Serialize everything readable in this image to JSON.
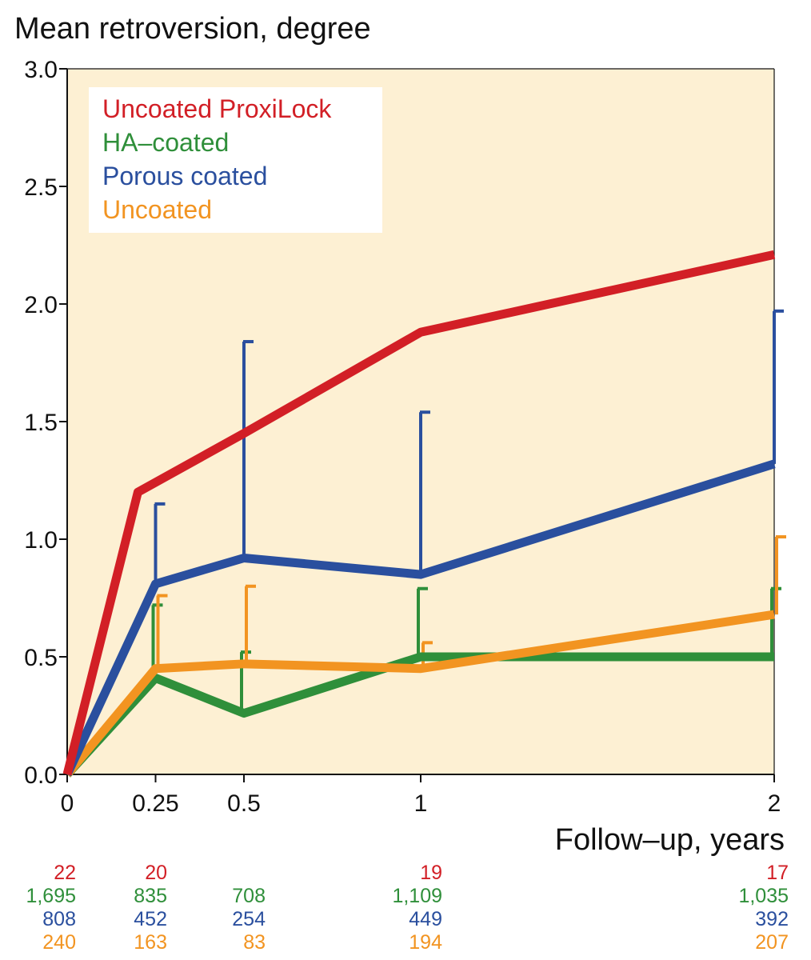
{
  "chart_data": {
    "type": "line",
    "title": "",
    "ylabel": "Mean retroversion, degree",
    "xlabel": "Follow–up, years",
    "ylim": [
      0,
      3.0
    ],
    "xlim": [
      0,
      2
    ],
    "y_ticks": [
      "0.0",
      "0.5",
      "1.0",
      "1.5",
      "2.0",
      "2.5",
      "3.0"
    ],
    "x_ticks": [
      "0",
      "0.25",
      "0.5",
      "1",
      "2"
    ],
    "grid": false,
    "background_color": "#fdf0d3",
    "legend_placement": "top-left",
    "series": [
      {
        "name": "Uncoated ProxiLock",
        "color": "#d21f26",
        "x": [
          0,
          0.2,
          0.5,
          1,
          2
        ],
        "y": [
          0,
          1.2,
          1.45,
          1.88,
          2.21
        ],
        "error_upper": [
          null,
          null,
          null,
          null,
          null
        ],
        "counts": [
          "22",
          "20",
          "",
          "19",
          "17"
        ]
      },
      {
        "name": "HA–coated",
        "color": "#2f8f3a",
        "x": [
          0,
          0.25,
          0.5,
          1,
          2
        ],
        "y": [
          0,
          0.41,
          0.26,
          0.5,
          0.5
        ],
        "error_upper": [
          null,
          0.72,
          0.52,
          0.79,
          0.79
        ],
        "counts": [
          "1,695",
          "835",
          "708",
          "1,109",
          "1,035"
        ]
      },
      {
        "name": "Porous coated",
        "color": "#2a4f9e",
        "x": [
          0,
          0.25,
          0.5,
          1,
          2
        ],
        "y": [
          0,
          0.81,
          0.92,
          0.85,
          1.32
        ],
        "error_upper": [
          null,
          1.15,
          1.84,
          1.54,
          1.97
        ],
        "counts": [
          "808",
          "452",
          "254",
          "449",
          "392"
        ]
      },
      {
        "name": "Uncoated",
        "color": "#f29421",
        "x": [
          0,
          0.25,
          0.5,
          1,
          2
        ],
        "y": [
          0,
          0.45,
          0.47,
          0.45,
          0.68
        ],
        "error_upper": [
          null,
          0.76,
          0.8,
          0.56,
          1.01
        ],
        "counts": [
          "240",
          "163",
          "83",
          "194",
          "207"
        ]
      }
    ]
  }
}
